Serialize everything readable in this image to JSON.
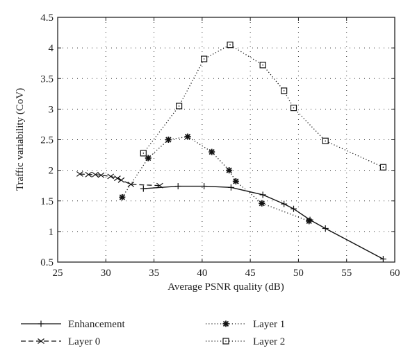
{
  "chart_data": {
    "type": "line",
    "title": "",
    "xlabel": "Average PSNR quality (dB)",
    "ylabel": "Traffic variability (CoV)",
    "xlim": [
      25,
      60
    ],
    "ylim": [
      0.5,
      4.5
    ],
    "xticks": [
      25,
      30,
      35,
      40,
      45,
      50,
      55,
      60
    ],
    "yticks": [
      0.5,
      1,
      1.5,
      2,
      2.5,
      3,
      3.5,
      4,
      4.5
    ],
    "grid": true,
    "legend_placement": "bottom",
    "series": [
      {
        "name": "Enhancement",
        "style": "solid",
        "marker": "plus",
        "x": [
          33.9,
          37.5,
          40.2,
          43.0,
          46.3,
          48.5,
          49.5,
          51.2,
          52.8,
          58.8
        ],
        "y": [
          1.7,
          1.74,
          1.74,
          1.72,
          1.6,
          1.45,
          1.37,
          1.19,
          1.05,
          0.55
        ]
      },
      {
        "name": "Layer 0",
        "style": "dashed",
        "marker": "x",
        "x": [
          27.3,
          28.2,
          28.9,
          29.5,
          30.5,
          31.2,
          31.6,
          32.6,
          35.6
        ],
        "y": [
          1.94,
          1.93,
          1.93,
          1.92,
          1.9,
          1.87,
          1.84,
          1.77,
          1.75
        ]
      },
      {
        "name": "Layer 1",
        "style": "dotted",
        "marker": "asterisk",
        "x": [
          31.7,
          34.4,
          36.5,
          38.5,
          41.0,
          42.8,
          43.5,
          46.2,
          51.1
        ],
        "y": [
          1.56,
          2.2,
          2.5,
          2.55,
          2.3,
          2.0,
          1.82,
          1.46,
          1.17
        ]
      },
      {
        "name": "Layer 2",
        "style": "dotted",
        "marker": "square",
        "x": [
          33.9,
          37.6,
          40.2,
          42.9,
          46.3,
          48.5,
          49.5,
          52.8,
          58.8
        ],
        "y": [
          2.28,
          3.05,
          3.82,
          4.05,
          3.72,
          3.3,
          3.02,
          2.48,
          2.05
        ]
      }
    ]
  }
}
